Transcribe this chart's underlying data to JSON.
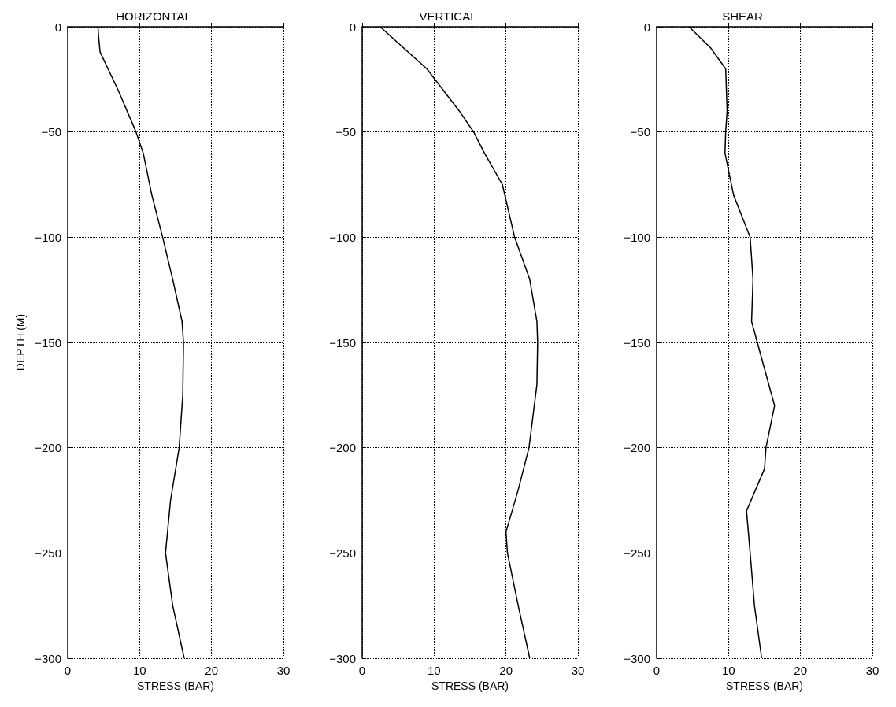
{
  "chart_data": [
    {
      "type": "line",
      "title": "HORIZONTAL",
      "xlabel": "STRESS (BAR)",
      "ylabel": "DEPTH (M)",
      "xlim": [
        0,
        30
      ],
      "xticks": [
        0,
        10,
        20,
        30
      ],
      "ylim": [
        -300,
        0
      ],
      "yticks": [
        -300,
        -250,
        -200,
        -150,
        -100,
        -50,
        0
      ],
      "grid": true,
      "series": [
        {
          "color": "#000000",
          "x": [
            4.2,
            4.3,
            4.5,
            7,
            9.5,
            10.5,
            11.7,
            13.2,
            14.6,
            15.9,
            16.1,
            16,
            15.5,
            14.3,
            13.6,
            14.6,
            16.2
          ],
          "values": [
            0,
            -5,
            -12,
            -30,
            -50,
            -60,
            -80,
            -100,
            -120,
            -140,
            -150,
            -175,
            -200,
            -225,
            -250,
            -275,
            -300
          ]
        }
      ]
    },
    {
      "type": "line",
      "title": "VERTICAL",
      "xlabel": "STRESS (BAR)",
      "xlim": [
        0,
        30
      ],
      "xticks": [
        0,
        10,
        20,
        30
      ],
      "ylim": [
        -300,
        0
      ],
      "yticks": [
        -300,
        -250,
        -200,
        -150,
        -100,
        -50,
        0
      ],
      "grid": true,
      "series": [
        {
          "color": "#000000",
          "x": [
            2.5,
            9,
            13.5,
            15.5,
            17,
            19.5,
            21.2,
            23.3,
            24.3,
            24.4,
            24.3,
            23.2,
            21.7,
            20,
            20.2,
            21.7,
            23.3
          ],
          "values": [
            0,
            -20,
            -40,
            -50,
            -60,
            -75,
            -100,
            -120,
            -140,
            -150,
            -170,
            -200,
            -220,
            -240,
            -250,
            -275,
            -300
          ]
        }
      ]
    },
    {
      "type": "line",
      "title": "SHEAR",
      "xlabel": "STRESS (BAR)",
      "xlim": [
        0,
        30
      ],
      "xticks": [
        0,
        10,
        20,
        30
      ],
      "ylim": [
        -300,
        0
      ],
      "yticks": [
        -300,
        -250,
        -200,
        -150,
        -100,
        -50,
        0
      ],
      "grid": true,
      "series": [
        {
          "color": "#000000",
          "x": [
            4.5,
            7.5,
            9.6,
            9.8,
            9.6,
            9.5,
            10.7,
            13,
            13.4,
            13.2,
            14.8,
            16.4,
            15.2,
            15,
            12.5,
            13,
            13.6,
            14.6
          ],
          "values": [
            0,
            -10,
            -20,
            -40,
            -50,
            -60,
            -80,
            -100,
            -120,
            -140,
            -160,
            -180,
            -200,
            -210,
            -230,
            -250,
            -275,
            -300
          ]
        }
      ]
    }
  ]
}
